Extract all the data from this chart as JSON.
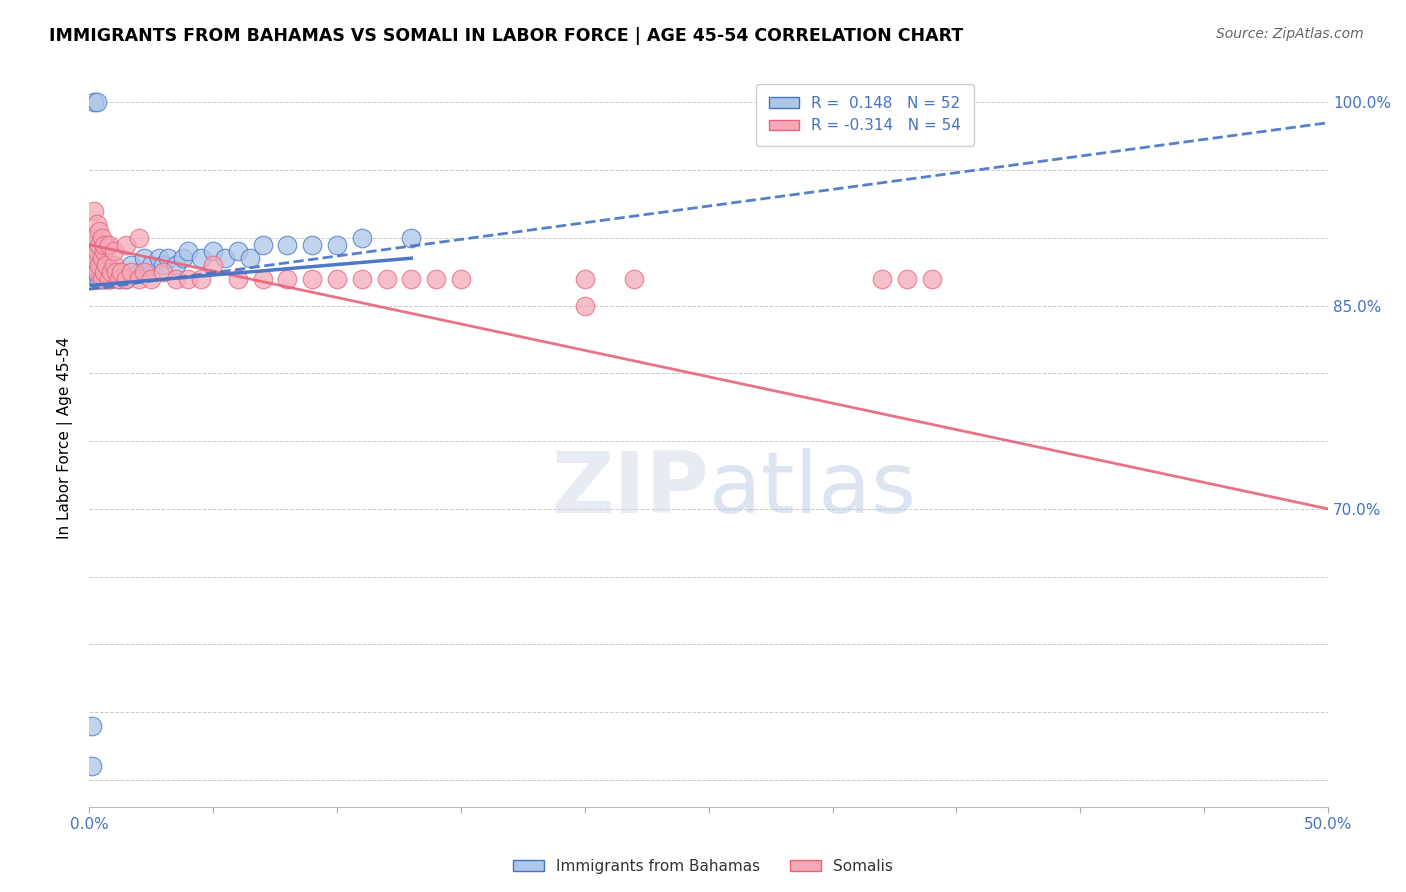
{
  "title": "IMMIGRANTS FROM BAHAMAS VS SOMALI IN LABOR FORCE | AGE 45-54 CORRELATION CHART",
  "source": "Source: ZipAtlas.com",
  "ylabel": "In Labor Force | Age 45-54",
  "xlim": [
    0.0,
    0.5
  ],
  "ylim": [
    0.48,
    1.025
  ],
  "R_bahamas": 0.148,
  "N_bahamas": 52,
  "R_somali": -0.314,
  "N_somali": 54,
  "bahamas_color": "#aec6e8",
  "somali_color": "#f4a8b8",
  "trendline_bahamas_color": "#4472c4",
  "trendline_somali_color": "#e8637a",
  "bahamas_x": [
    0.001,
    0.001,
    0.002,
    0.002,
    0.002,
    0.002,
    0.003,
    0.003,
    0.003,
    0.003,
    0.004,
    0.004,
    0.004,
    0.005,
    0.005,
    0.005,
    0.006,
    0.006,
    0.007,
    0.007,
    0.008,
    0.009,
    0.01,
    0.011,
    0.012,
    0.013,
    0.015,
    0.017,
    0.02,
    0.022,
    0.025,
    0.028,
    0.03,
    0.032,
    0.035,
    0.038,
    0.04,
    0.045,
    0.05,
    0.055,
    0.06,
    0.065,
    0.07,
    0.08,
    0.09,
    0.1,
    0.11,
    0.13,
    0.001,
    0.001,
    0.002,
    0.003
  ],
  "bahamas_y": [
    0.87,
    0.875,
    0.88,
    0.885,
    0.89,
    0.895,
    0.87,
    0.875,
    0.88,
    0.885,
    0.87,
    0.875,
    0.88,
    0.87,
    0.875,
    0.88,
    0.87,
    0.875,
    0.87,
    0.875,
    0.87,
    0.87,
    0.875,
    0.875,
    0.87,
    0.875,
    0.87,
    0.88,
    0.875,
    0.885,
    0.88,
    0.885,
    0.88,
    0.885,
    0.88,
    0.885,
    0.89,
    0.885,
    0.89,
    0.885,
    0.89,
    0.885,
    0.895,
    0.895,
    0.895,
    0.895,
    0.9,
    0.9,
    0.54,
    0.51,
    1.0,
    1.0
  ],
  "somali_x": [
    0.001,
    0.002,
    0.002,
    0.003,
    0.003,
    0.004,
    0.004,
    0.005,
    0.005,
    0.006,
    0.006,
    0.007,
    0.007,
    0.008,
    0.009,
    0.01,
    0.011,
    0.012,
    0.013,
    0.015,
    0.017,
    0.02,
    0.022,
    0.025,
    0.03,
    0.035,
    0.04,
    0.045,
    0.05,
    0.06,
    0.07,
    0.08,
    0.09,
    0.1,
    0.11,
    0.12,
    0.13,
    0.14,
    0.15,
    0.2,
    0.22,
    0.32,
    0.33,
    0.34,
    0.002,
    0.003,
    0.004,
    0.005,
    0.006,
    0.008,
    0.01,
    0.015,
    0.02,
    0.2
  ],
  "somali_y": [
    0.88,
    0.885,
    0.9,
    0.875,
    0.89,
    0.88,
    0.895,
    0.87,
    0.885,
    0.875,
    0.89,
    0.88,
    0.895,
    0.87,
    0.875,
    0.88,
    0.875,
    0.87,
    0.875,
    0.87,
    0.875,
    0.87,
    0.875,
    0.87,
    0.875,
    0.87,
    0.87,
    0.87,
    0.88,
    0.87,
    0.87,
    0.87,
    0.87,
    0.87,
    0.87,
    0.87,
    0.87,
    0.87,
    0.87,
    0.87,
    0.87,
    0.87,
    0.87,
    0.87,
    0.92,
    0.91,
    0.905,
    0.9,
    0.895,
    0.895,
    0.89,
    0.895,
    0.9,
    0.85
  ],
  "trendline_bah_x0": 0.0,
  "trendline_bah_y0": 0.862,
  "trendline_bah_x1": 0.5,
  "trendline_bah_y1": 0.985,
  "trendline_som_x0": 0.0,
  "trendline_som_y0": 0.895,
  "trendline_som_x1": 0.5,
  "trendline_som_y1": 0.7
}
